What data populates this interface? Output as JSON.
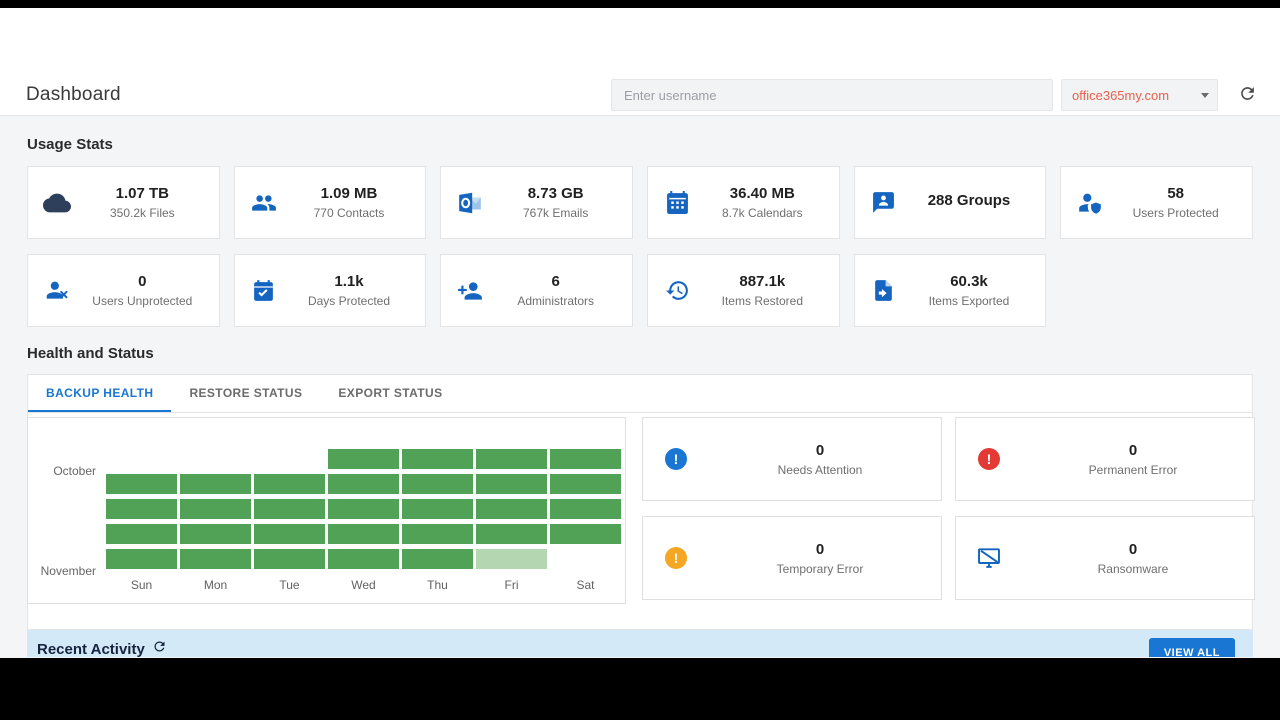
{
  "header": {
    "title": "Dashboard",
    "search": {
      "placeholder": "Enter username"
    },
    "domain_select": {
      "value": "office365my.com"
    }
  },
  "usage_stats": {
    "heading": "Usage Stats",
    "cards": [
      {
        "icon": "cloud-icon",
        "value": "1.07 TB",
        "label": "350.2k Files"
      },
      {
        "icon": "contacts-icon",
        "value": "1.09 MB",
        "label": "770 Contacts"
      },
      {
        "icon": "outlook-icon",
        "value": "8.73 GB",
        "label": "767k Emails"
      },
      {
        "icon": "calendar-icon",
        "value": "36.40 MB",
        "label": "8.7k Calendars"
      },
      {
        "icon": "groups-chat-icon",
        "value": "288 Groups",
        "label": ""
      },
      {
        "icon": "user-shield-icon",
        "value": "58",
        "label": "Users Protected"
      },
      {
        "icon": "user-x-icon",
        "value": "0",
        "label": "Users Unprotected"
      },
      {
        "icon": "calendar-check-icon",
        "value": "1.1k",
        "label": "Days Protected"
      },
      {
        "icon": "user-plus-icon",
        "value": "6",
        "label": "Administrators"
      },
      {
        "icon": "history-icon",
        "value": "887.1k",
        "label": "Items Restored"
      },
      {
        "icon": "export-icon",
        "value": "60.3k",
        "label": "Items Exported"
      }
    ]
  },
  "health": {
    "heading": "Health and Status",
    "tabs": [
      {
        "label": "BACKUP HEALTH",
        "active": true
      },
      {
        "label": "RESTORE STATUS",
        "active": false
      },
      {
        "label": "EXPORT STATUS",
        "active": false
      }
    ],
    "heatmap": {
      "day_labels": [
        "Sun",
        "Mon",
        "Tue",
        "Wed",
        "Thu",
        "Fri",
        "Sat"
      ],
      "month_labels": [
        {
          "label": "October",
          "row": 1
        },
        {
          "label": "November",
          "row": 5
        }
      ],
      "rows": [
        [
          0,
          0,
          0,
          1,
          1,
          1,
          1
        ],
        [
          1,
          1,
          1,
          1,
          1,
          1,
          1
        ],
        [
          1,
          1,
          1,
          1,
          1,
          1,
          1
        ],
        [
          1,
          1,
          1,
          1,
          1,
          1,
          1
        ],
        [
          1,
          1,
          1,
          1,
          1,
          0.5,
          0
        ]
      ],
      "cell_color": "#51a156",
      "cell_color_light": "#b4d7b2"
    },
    "status_cards": [
      {
        "icon": "alert-circle-icon",
        "icon_color": "#1976d2",
        "value": "0",
        "label": "Needs Attention"
      },
      {
        "icon": "error-circle-icon",
        "icon_color": "#e53935",
        "value": "0",
        "label": "Permanent Error"
      },
      {
        "icon": "warning-circle-icon",
        "icon_color": "#f5a623",
        "value": "0",
        "label": "Temporary Error"
      },
      {
        "icon": "ransomware-monitor-icon",
        "icon_color": "#1565c0",
        "value": "0",
        "label": "Ransomware"
      }
    ]
  },
  "recent_activity": {
    "heading": "Recent Activity",
    "view_all": "VIEW ALL"
  },
  "colors": {
    "accent_blue": "#1976d2",
    "icon_blue": "#1565c0",
    "cloud_navy": "#2e3f5c",
    "domain_text_orange": "#e8604c",
    "band_light_blue": "#d4e9f7",
    "body_background": "#f4f5f7"
  }
}
